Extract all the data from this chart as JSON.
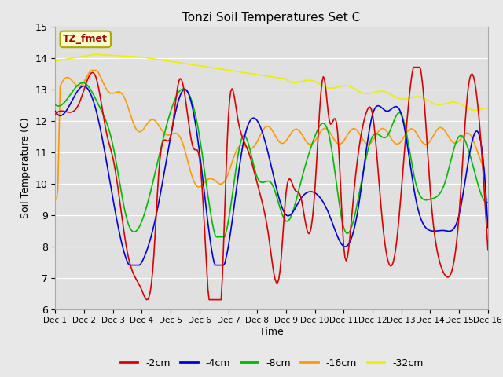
{
  "title": "Tonzi Soil Temperatures Set C",
  "xlabel": "Time",
  "ylabel": "Soil Temperature (C)",
  "ylim": [
    6.0,
    15.0
  ],
  "yticks": [
    6.0,
    7.0,
    8.0,
    9.0,
    10.0,
    11.0,
    12.0,
    13.0,
    14.0,
    15.0
  ],
  "xtick_labels": [
    "Dec 1",
    "Dec 2",
    "Dec 3",
    "Dec 4",
    "Dec 5",
    "Dec 6",
    "Dec 7",
    "Dec 8",
    "Dec 9",
    "Dec 10",
    "Dec 11",
    "Dec 12",
    "Dec 13",
    "Dec 14",
    "Dec 15",
    "Dec 16"
  ],
  "annotation": "TZ_fmet",
  "colors": {
    "-2cm": "#dd0000",
    "-4cm": "#0000dd",
    "-8cm": "#00bb00",
    "-16cm": "#ff9900",
    "-32cm": "#eeee00"
  },
  "background_color": "#e8e8e8",
  "plot_bg_color": "#e0e0e0",
  "grid_color": "#ffffff",
  "annotation_bg": "#ffffcc",
  "annotation_border": "#aaaa00",
  "annotation_fg": "#aa0000",
  "n_days": 15
}
